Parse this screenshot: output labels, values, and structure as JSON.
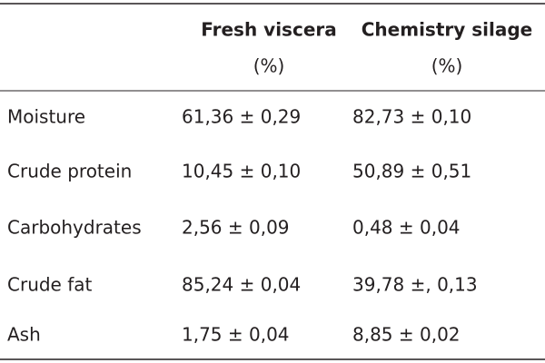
{
  "table": {
    "columns": [
      {
        "name": "Fresh viscera",
        "unit": "(%)"
      },
      {
        "name": "Chemistry silage",
        "unit": "(%)"
      }
    ],
    "rows": [
      [
        "Moisture",
        "61,36 ± 0,29",
        "82,73 ± 0,10"
      ],
      [
        "Crude protein",
        "10,45 ± 0,10",
        "50,89 ± 0,51"
      ],
      [
        "Carbohydrates",
        "2,56 ± 0,09",
        "0,48 ± 0,04"
      ],
      [
        "Crude fat",
        "85,24 ± 0,04",
        "39,78 ±, 0,13"
      ],
      [
        "Ash",
        "1,75 ± 0,04",
        "8,85 ± 0,02"
      ]
    ]
  }
}
